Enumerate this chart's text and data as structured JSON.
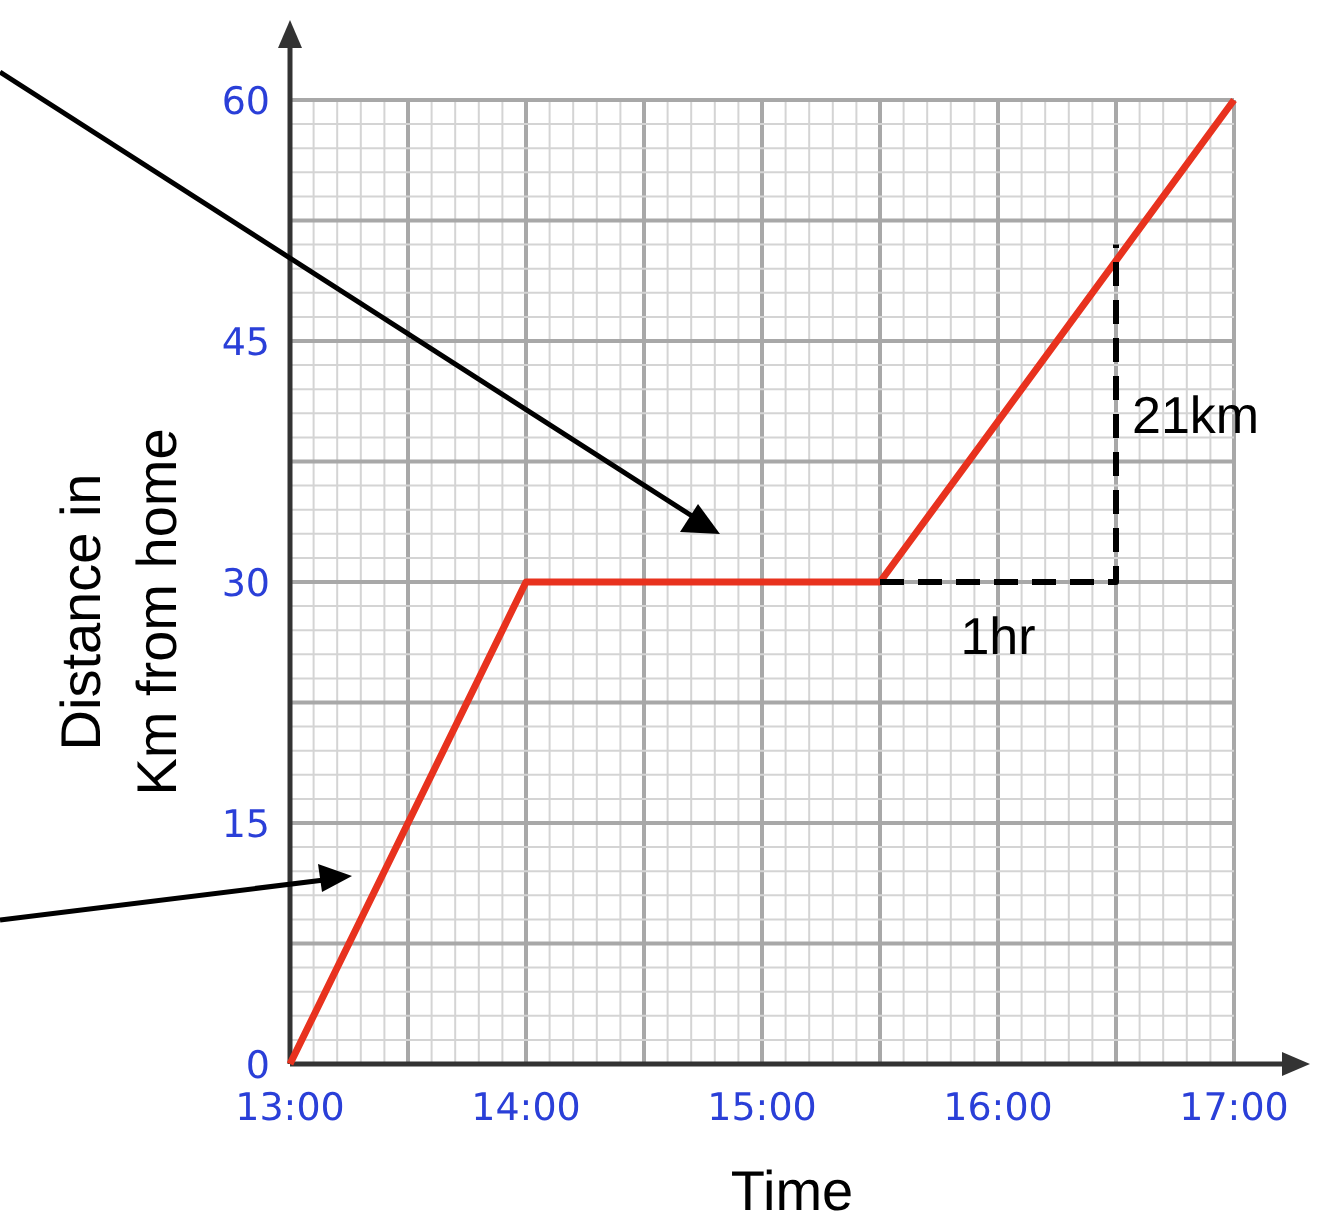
{
  "chart_data": {
    "type": "line",
    "xlabel": "Time",
    "ylabel": "Distance in\nKm from home",
    "xlim": [
      13,
      17
    ],
    "xticks": [
      {
        "value": 13,
        "label": "13:00"
      },
      {
        "value": 13.5,
        "label": null
      },
      {
        "value": 14,
        "label": "14:00"
      },
      {
        "value": 14.5,
        "label": null
      },
      {
        "value": 15,
        "label": "15:00"
      },
      {
        "value": 15.5,
        "label": null
      },
      {
        "value": 16,
        "label": "16:00"
      },
      {
        "value": 16.5,
        "label": null
      },
      {
        "value": 17,
        "label": "17:00"
      }
    ],
    "ylim": [
      0,
      60
    ],
    "yticks": [
      0,
      {
        "value": 7.5,
        "label": null
      },
      15,
      {
        "value": 22.5,
        "label": null
      },
      30,
      {
        "value": 37.5,
        "label": null
      },
      45,
      {
        "value": 52.5,
        "label": null
      },
      60
    ],
    "grid": true,
    "series": [
      {
        "color": "#e8321e",
        "x": [
          13,
          14,
          15.5,
          17
        ],
        "values": [
          0,
          30,
          30,
          60
        ],
        "line_style": "solid"
      },
      {
        "color": "#000000",
        "x": [
          15.5,
          16.5,
          16.5
        ],
        "values": [
          30,
          30,
          51
        ],
        "line_style": "dashed"
      }
    ],
    "annotations": [
      {
        "text": "1hr",
        "x": 16,
        "y": 30
      },
      {
        "text": "21km",
        "x": 16.5,
        "y": 40.5
      }
    ]
  }
}
